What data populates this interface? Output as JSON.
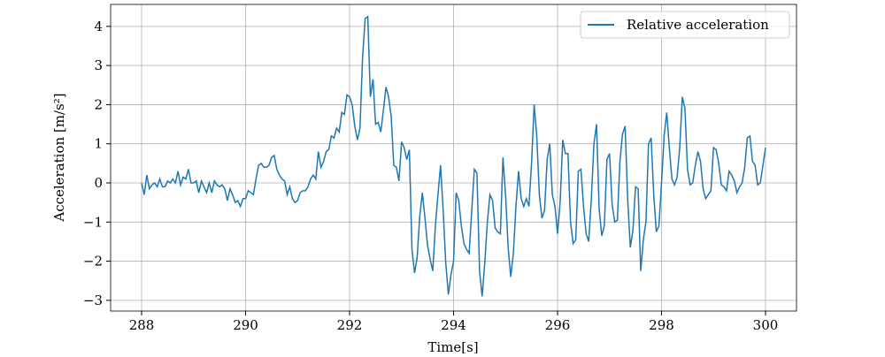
{
  "chart_data": {
    "type": "line",
    "xlabel": "Time[s]",
    "ylabel": "Acceleration [m/s²]",
    "xlim": [
      287.404,
      300.596
    ],
    "ylim": [
      -3.274,
      4.561
    ],
    "xticks": [
      288,
      290,
      292,
      294,
      296,
      298,
      300
    ],
    "yticks": [
      {
        "value": -3,
        "label": "−3"
      },
      {
        "value": -2,
        "label": "−2"
      },
      {
        "value": -1,
        "label": "−1"
      },
      0,
      1,
      2,
      3,
      4
    ],
    "grid": true,
    "legend": "upper right",
    "x": [
      288,
      288.05,
      288.1,
      288.15,
      288.2,
      288.25,
      288.3,
      288.35,
      288.4,
      288.45,
      288.5,
      288.55,
      288.6,
      288.65,
      288.7,
      288.75,
      288.8,
      288.85,
      288.9,
      288.95,
      289,
      289.05,
      289.1,
      289.15,
      289.2,
      289.25,
      289.3,
      289.35,
      289.4,
      289.45,
      289.5,
      289.55,
      289.6,
      289.65,
      289.7,
      289.75,
      289.8,
      289.85,
      289.9,
      289.95,
      290,
      290.05,
      290.1,
      290.15,
      290.2,
      290.25,
      290.3,
      290.35,
      290.4,
      290.45,
      290.5,
      290.55,
      290.6,
      290.65,
      290.7,
      290.75,
      290.8,
      290.85,
      290.9,
      290.95,
      291,
      291.05,
      291.1,
      291.15,
      291.2,
      291.25,
      291.3,
      291.35,
      291.4,
      291.45,
      291.5,
      291.55,
      291.6,
      291.65,
      291.7,
      291.75,
      291.8,
      291.85,
      291.9,
      291.95,
      292,
      292.05,
      292.1,
      292.15,
      292.2,
      292.25,
      292.3,
      292.35,
      292.4,
      292.45,
      292.5,
      292.55,
      292.6,
      292.65,
      292.7,
      292.75,
      292.8,
      292.85,
      292.9,
      292.95,
      293,
      293.05,
      293.1,
      293.15,
      293.2,
      293.25,
      293.3,
      293.35,
      293.4,
      293.45,
      293.5,
      293.55,
      293.6,
      293.65,
      293.7,
      293.75,
      293.8,
      293.85,
      293.9,
      293.95,
      294,
      294.05,
      294.1,
      294.15,
      294.2,
      294.25,
      294.3,
      294.35,
      294.4,
      294.45,
      294.5,
      294.55,
      294.6,
      294.65,
      294.7,
      294.75,
      294.8,
      294.85,
      294.9,
      294.95,
      295,
      295.05,
      295.1,
      295.15,
      295.2,
      295.25,
      295.3,
      295.35,
      295.4,
      295.45,
      295.5,
      295.55,
      295.6,
      295.65,
      295.7,
      295.75,
      295.8,
      295.85,
      295.9,
      295.95,
      296,
      296.05,
      296.1,
      296.15,
      296.2,
      296.25,
      296.3,
      296.35,
      296.4,
      296.45,
      296.5,
      296.55,
      296.6,
      296.65,
      296.7,
      296.75,
      296.8,
      296.85,
      296.9,
      296.95,
      297,
      297.05,
      297.1,
      297.15,
      297.2,
      297.25,
      297.3,
      297.35,
      297.4,
      297.45,
      297.5,
      297.55,
      297.6,
      297.65,
      297.7,
      297.75,
      297.8,
      297.85,
      297.9,
      297.95,
      298,
      298.05,
      298.1,
      298.15,
      298.2,
      298.25,
      298.3,
      298.35,
      298.4,
      298.45,
      298.5,
      298.55,
      298.6,
      298.65,
      298.7,
      298.75,
      298.8,
      298.85,
      298.9,
      298.95,
      299,
      299.05,
      299.1,
      299.15,
      299.2,
      299.25,
      299.3,
      299.35,
      299.4,
      299.45,
      299.5,
      299.55,
      299.6,
      299.65,
      299.7,
      299.75,
      299.8,
      299.85,
      299.9,
      300
    ],
    "series": [
      {
        "name": "Relative acceleration",
        "color": "#1f77b4",
        "values": [
          0,
          -0.3,
          0.2,
          -0.15,
          -0.05,
          0,
          -0.1,
          0.1,
          -0.1,
          -0.1,
          0.05,
          0,
          0.1,
          0,
          0.3,
          -0.05,
          0.15,
          0.1,
          0.35,
          0,
          0,
          0.05,
          -0.25,
          0.05,
          -0.1,
          -0.25,
          0,
          -0.25,
          0.05,
          -0.05,
          -0.1,
          -0.05,
          -0.15,
          -0.45,
          -0.15,
          -0.3,
          -0.5,
          -0.45,
          -0.6,
          -0.4,
          -0.4,
          -0.2,
          -0.25,
          -0.3,
          0.1,
          0.45,
          0.5,
          0.4,
          0.4,
          0.45,
          0.65,
          0.7,
          0.35,
          0.2,
          0.1,
          0.05,
          -0.3,
          -0.1,
          -0.4,
          -0.5,
          -0.45,
          -0.25,
          -0.2,
          -0.2,
          -0.1,
          0.1,
          0.2,
          0.1,
          0.8,
          0.4,
          0.55,
          0.8,
          0.85,
          1.2,
          1.15,
          1.4,
          1.3,
          1.8,
          1.75,
          2.25,
          2.2,
          2,
          1.45,
          1.1,
          1.4,
          3.2,
          4.2,
          4.25,
          2.2,
          2.65,
          1.5,
          1.55,
          1.3,
          1.85,
          2.45,
          2.2,
          1.7,
          0.45,
          0.4,
          0.05,
          1.05,
          0.9,
          0.6,
          0.85,
          -1.7,
          -2.3,
          -1.9,
          -0.85,
          -0.25,
          -0.9,
          -1.6,
          -1.95,
          -2.25,
          -1.1,
          -0.3,
          0.45,
          -0.7,
          -2.05,
          -2.85,
          -2.35,
          -2,
          -0.25,
          -0.45,
          -1.1,
          -1.55,
          -1.7,
          -1.8,
          -0.7,
          0.35,
          0.25,
          -2.25,
          -2.9,
          -2.05,
          -1,
          -0.3,
          -0.45,
          -1.15,
          -1.25,
          -1.3,
          0.65,
          -0.3,
          -1.65,
          -2.4,
          -1.8,
          -0.6,
          0.3,
          -0.4,
          -0.6,
          -0.4,
          -0.6,
          0.5,
          2,
          1.2,
          -0.3,
          -0.9,
          -0.7,
          0.6,
          1,
          -0.3,
          -0.6,
          -1.3,
          -0.5,
          1.1,
          0.75,
          0.75,
          -1,
          -1.55,
          -1.45,
          0.3,
          0.35,
          -0.6,
          -1.3,
          -1.5,
          -0.4,
          1,
          1.5,
          -0.65,
          -1.35,
          -1.1,
          0.6,
          0.75,
          -0.55,
          -1,
          -0.95,
          0.55,
          1.25,
          1.45,
          -0.45,
          -1.65,
          -1.2,
          -0.1,
          -0.15,
          -2.25,
          -1.45,
          -1,
          1,
          1.15,
          -0.3,
          -1.25,
          -1.1,
          0,
          1.2,
          1.8,
          0.9,
          0.1,
          -0.05,
          0.15,
          0.9,
          2.2,
          1.9,
          0.35,
          -0.05,
          0,
          0.45,
          0.8,
          0.55,
          -0.15,
          -0.4,
          -0.3,
          -0.2,
          0.9,
          0.85,
          0.5,
          -0.05,
          -0.1,
          -0.2,
          0.3,
          0.2,
          0.05,
          -0.25,
          -0.1,
          0,
          0.4,
          1.15,
          1.2,
          0.55,
          0.45,
          -0.05,
          0,
          0.9
        ]
      }
    ]
  }
}
